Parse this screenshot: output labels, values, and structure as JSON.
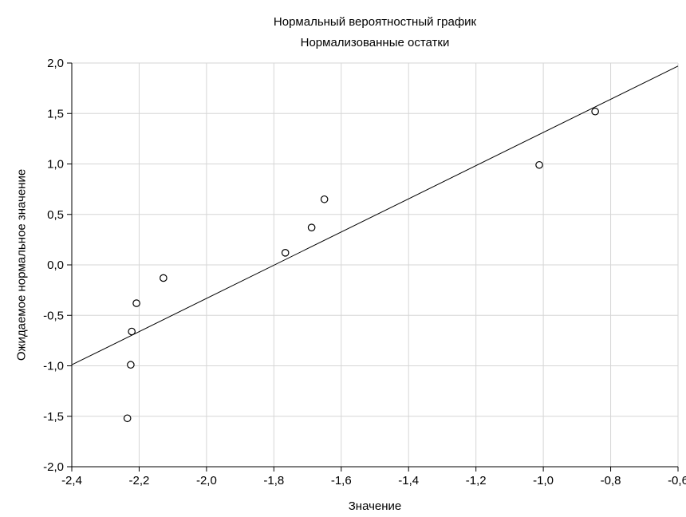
{
  "chart_data": {
    "type": "scatter",
    "title": "Нормальный вероятностный график",
    "subtitle": "Нормализованные остатки",
    "xlabel": "Значение",
    "ylabel": "Ожидаемое нормальное значение",
    "xlim": [
      -2.4,
      -0.6
    ],
    "ylim": [
      -2.0,
      2.0
    ],
    "x_ticks": [
      -2.4,
      -2.2,
      -2.0,
      -1.8,
      -1.6,
      -1.4,
      -1.2,
      -1.0,
      -0.8,
      -0.6
    ],
    "y_ticks": [
      -2.0,
      -1.5,
      -1.0,
      -0.5,
      0.0,
      0.5,
      1.0,
      1.5,
      2.0
    ],
    "x_tick_labels": [
      "-2,4",
      "-2,2",
      "-2,0",
      "-1,8",
      "-1,6",
      "-1,4",
      "-1,2",
      "-1,0",
      "-0,8",
      "-0,6"
    ],
    "y_tick_labels": [
      "-2,0",
      "-1,5",
      "-1,0",
      "-0,5",
      "0,0",
      "0,5",
      "1,0",
      "1,5",
      "2,0"
    ],
    "grid": true,
    "points": [
      {
        "x": -2.235,
        "y": -1.52
      },
      {
        "x": -2.225,
        "y": -0.99
      },
      {
        "x": -2.222,
        "y": -0.66
      },
      {
        "x": -2.208,
        "y": -0.38
      },
      {
        "x": -2.128,
        "y": -0.13
      },
      {
        "x": -1.766,
        "y": 0.12
      },
      {
        "x": -1.688,
        "y": 0.37
      },
      {
        "x": -1.65,
        "y": 0.65
      },
      {
        "x": -1.012,
        "y": 0.99
      },
      {
        "x": -0.846,
        "y": 1.52
      }
    ],
    "fit_line": {
      "x": [
        -2.4,
        -0.6
      ],
      "y": [
        -0.99,
        1.97
      ]
    },
    "colors": {
      "grid": "#d6d6d6",
      "axis": "#000000",
      "marker_stroke": "#000000",
      "marker_fill": "#ffffff",
      "line": "#000000"
    }
  }
}
